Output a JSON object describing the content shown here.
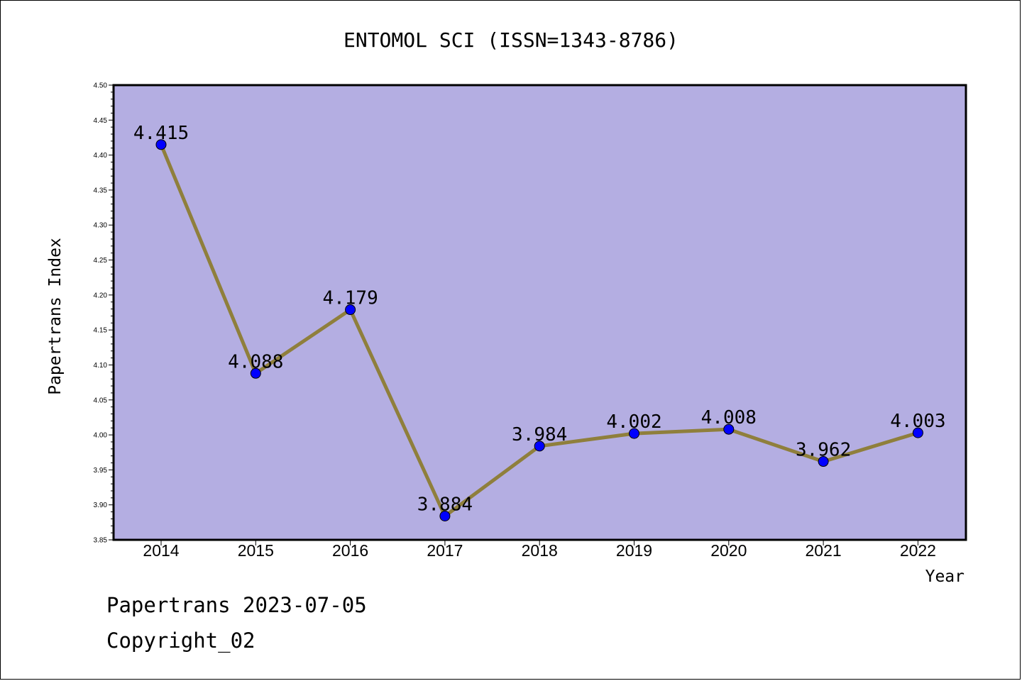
{
  "chart_data": {
    "type": "line",
    "title": "ENTOMOL SCI (ISSN=1343-8786)",
    "xlabel": "Year",
    "ylabel": "Papertrans Index",
    "categories": [
      "2014",
      "2015",
      "2016",
      "2017",
      "2018",
      "2019",
      "2020",
      "2021",
      "2022"
    ],
    "series": [
      {
        "values": [
          4.415,
          4.088,
          4.179,
          3.884,
          3.984,
          4.002,
          4.008,
          3.962,
          4.003
        ]
      }
    ],
    "data_labels": [
      "4.415",
      "4.088",
      "4.179",
      "3.884",
      "3.984",
      "4.002",
      "4.008",
      "3.962",
      "4.003"
    ],
    "ylim": [
      3.85,
      4.5
    ],
    "yticks": [
      "3.85",
      "3.90",
      "3.95",
      "4.00",
      "4.05",
      "4.10",
      "4.15",
      "4.20",
      "4.25",
      "4.30",
      "4.35",
      "4.40",
      "4.45",
      "4.50"
    ],
    "grid": false,
    "colors": {
      "plot_bg": "#b4aee2",
      "line": "#8f7f3c",
      "marker": "#0000ff"
    }
  },
  "footer": {
    "line1": "Papertrans 2023-07-05",
    "line2": "Copyright_02"
  }
}
